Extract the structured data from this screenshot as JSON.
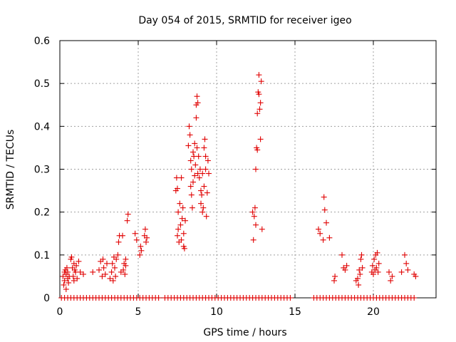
{
  "chart_data": {
    "type": "scatter",
    "title": "Day 054 of 2015, SRMTID for receiver igeo",
    "xlabel": "GPS time / hours",
    "ylabel": "SRMTID / TECUs",
    "xlim": [
      0,
      24
    ],
    "ylim": [
      0,
      0.6
    ],
    "xticks": [
      0,
      5,
      10,
      15,
      20
    ],
    "xtick_labels": [
      "0",
      "5",
      "10",
      "15",
      "20"
    ],
    "yticks": [
      0,
      0.1,
      0.2,
      0.3,
      0.4,
      0.5,
      0.6
    ],
    "ytick_labels": [
      "0",
      "0.1",
      "0.2",
      "0.3",
      "0.4",
      "0.5",
      "0.6"
    ],
    "grid": true,
    "marker": "+",
    "marker_color": "#e00000",
    "series": [
      {
        "name": "SRMTID",
        "points": [
          [
            0.2,
            0.05
          ],
          [
            0.25,
            0.03
          ],
          [
            0.3,
            0.06
          ],
          [
            0.3,
            0.04
          ],
          [
            0.35,
            0.065
          ],
          [
            0.4,
            0.02
          ],
          [
            0.4,
            0.055
          ],
          [
            0.45,
            0.07
          ],
          [
            0.5,
            0.045
          ],
          [
            0.5,
            0.06
          ],
          [
            0.55,
            0.035
          ],
          [
            0.6,
            0.05
          ],
          [
            0.7,
            0.09
          ],
          [
            0.75,
            0.095
          ],
          [
            0.8,
            0.07
          ],
          [
            0.85,
            0.05
          ],
          [
            0.9,
            0.04
          ],
          [
            0.9,
            0.08
          ],
          [
            0.95,
            0.065
          ],
          [
            1.0,
            0.06
          ],
          [
            1.05,
            0.075
          ],
          [
            1.1,
            0.045
          ],
          [
            1.2,
            0.085
          ],
          [
            1.3,
            0.06
          ],
          [
            1.5,
            0.055
          ],
          [
            2.1,
            0.06
          ],
          [
            2.5,
            0.065
          ],
          [
            2.6,
            0.085
          ],
          [
            2.7,
            0.05
          ],
          [
            2.75,
            0.09
          ],
          [
            2.8,
            0.07
          ],
          [
            2.9,
            0.055
          ],
          [
            3.0,
            0.08
          ],
          [
            3.2,
            0.045
          ],
          [
            3.3,
            0.06
          ],
          [
            3.35,
            0.08
          ],
          [
            3.4,
            0.04
          ],
          [
            3.45,
            0.095
          ],
          [
            3.5,
            0.07
          ],
          [
            3.55,
            0.05
          ],
          [
            3.6,
            0.09
          ],
          [
            3.7,
            0.1
          ],
          [
            3.75,
            0.13
          ],
          [
            3.8,
            0.145
          ],
          [
            3.9,
            0.06
          ],
          [
            4.0,
            0.145
          ],
          [
            4.05,
            0.065
          ],
          [
            4.1,
            0.08
          ],
          [
            4.15,
            0.055
          ],
          [
            4.2,
            0.075
          ],
          [
            4.2,
            0.09
          ],
          [
            4.3,
            0.18
          ],
          [
            4.35,
            0.195
          ],
          [
            4.8,
            0.15
          ],
          [
            4.9,
            0.135
          ],
          [
            5.1,
            0.1
          ],
          [
            5.15,
            0.12
          ],
          [
            5.2,
            0.11
          ],
          [
            5.4,
            0.145
          ],
          [
            5.45,
            0.16
          ],
          [
            5.5,
            0.13
          ],
          [
            5.55,
            0.14
          ],
          [
            7.4,
            0.25
          ],
          [
            7.45,
            0.28
          ],
          [
            7.5,
            0.255
          ],
          [
            7.5,
            0.145
          ],
          [
            7.55,
            0.2
          ],
          [
            7.55,
            0.16
          ],
          [
            7.6,
            0.13
          ],
          [
            7.65,
            0.22
          ],
          [
            7.7,
            0.17
          ],
          [
            7.75,
            0.135
          ],
          [
            7.75,
            0.28
          ],
          [
            7.8,
            0.185
          ],
          [
            7.85,
            0.21
          ],
          [
            7.9,
            0.12
          ],
          [
            7.9,
            0.15
          ],
          [
            7.95,
            0.115
          ],
          [
            8.0,
            0.18
          ],
          [
            8.2,
            0.355
          ],
          [
            8.25,
            0.4
          ],
          [
            8.3,
            0.38
          ],
          [
            8.35,
            0.32
          ],
          [
            8.35,
            0.26
          ],
          [
            8.4,
            0.3
          ],
          [
            8.4,
            0.24
          ],
          [
            8.45,
            0.21
          ],
          [
            8.5,
            0.34
          ],
          [
            8.5,
            0.27
          ],
          [
            8.55,
            0.33
          ],
          [
            8.6,
            0.36
          ],
          [
            8.6,
            0.285
          ],
          [
            8.65,
            0.31
          ],
          [
            8.7,
            0.45
          ],
          [
            8.7,
            0.42
          ],
          [
            8.75,
            0.47
          ],
          [
            8.75,
            0.35
          ],
          [
            8.8,
            0.455
          ],
          [
            8.8,
            0.29
          ],
          [
            8.85,
            0.33
          ],
          [
            8.9,
            0.28
          ],
          [
            8.95,
            0.3
          ],
          [
            9.0,
            0.25
          ],
          [
            9.0,
            0.22
          ],
          [
            9.05,
            0.24
          ],
          [
            9.1,
            0.2
          ],
          [
            9.1,
            0.29
          ],
          [
            9.15,
            0.21
          ],
          [
            9.2,
            0.26
          ],
          [
            9.2,
            0.35
          ],
          [
            9.25,
            0.37
          ],
          [
            9.3,
            0.33
          ],
          [
            9.3,
            0.3
          ],
          [
            9.35,
            0.19
          ],
          [
            9.4,
            0.245
          ],
          [
            9.45,
            0.32
          ],
          [
            9.5,
            0.29
          ],
          [
            12.3,
            0.2
          ],
          [
            12.35,
            0.135
          ],
          [
            12.4,
            0.19
          ],
          [
            12.45,
            0.21
          ],
          [
            12.5,
            0.17
          ],
          [
            12.5,
            0.3
          ],
          [
            12.55,
            0.35
          ],
          [
            12.6,
            0.345
          ],
          [
            12.6,
            0.43
          ],
          [
            12.65,
            0.48
          ],
          [
            12.7,
            0.52
          ],
          [
            12.7,
            0.475
          ],
          [
            12.75,
            0.44
          ],
          [
            12.8,
            0.455
          ],
          [
            12.8,
            0.37
          ],
          [
            12.85,
            0.505
          ],
          [
            12.9,
            0.16
          ],
          [
            16.5,
            0.16
          ],
          [
            16.6,
            0.15
          ],
          [
            16.8,
            0.135
          ],
          [
            16.85,
            0.235
          ],
          [
            16.9,
            0.205
          ],
          [
            17.0,
            0.175
          ],
          [
            17.2,
            0.14
          ],
          [
            17.5,
            0.04
          ],
          [
            17.55,
            0.05
          ],
          [
            18.0,
            0.1
          ],
          [
            18.1,
            0.07
          ],
          [
            18.2,
            0.065
          ],
          [
            18.3,
            0.075
          ],
          [
            18.9,
            0.04
          ],
          [
            19.0,
            0.045
          ],
          [
            19.05,
            0.03
          ],
          [
            19.1,
            0.065
          ],
          [
            19.15,
            0.055
          ],
          [
            19.2,
            0.09
          ],
          [
            19.25,
            0.1
          ],
          [
            19.3,
            0.07
          ],
          [
            19.9,
            0.06
          ],
          [
            19.95,
            0.075
          ],
          [
            20.0,
            0.055
          ],
          [
            20.05,
            0.09
          ],
          [
            20.1,
            0.065
          ],
          [
            20.15,
            0.1
          ],
          [
            20.2,
            0.07
          ],
          [
            20.25,
            0.105
          ],
          [
            20.3,
            0.06
          ],
          [
            20.35,
            0.08
          ],
          [
            21.0,
            0.06
          ],
          [
            21.1,
            0.04
          ],
          [
            21.2,
            0.05
          ],
          [
            21.8,
            0.06
          ],
          [
            22.0,
            0.1
          ],
          [
            22.1,
            0.08
          ],
          [
            22.2,
            0.065
          ],
          [
            22.6,
            0.055
          ],
          [
            22.7,
            0.05
          ]
        ],
        "zero_x": [
          0.1,
          0.3,
          0.5,
          0.7,
          0.9,
          1.1,
          1.3,
          1.5,
          1.7,
          1.9,
          2.1,
          2.3,
          2.5,
          2.7,
          2.9,
          3.1,
          3.3,
          3.5,
          3.7,
          3.9,
          4.1,
          4.3,
          4.5,
          4.7,
          4.9,
          5.1,
          5.3,
          5.5,
          5.7,
          5.9,
          6.1,
          6.3,
          6.7,
          6.9,
          7.1,
          7.3,
          7.5,
          7.7,
          7.9,
          8.1,
          8.3,
          8.5,
          8.7,
          8.9,
          9.1,
          9.3,
          9.5,
          9.7,
          9.9,
          10.1,
          10.3,
          10.5,
          10.7,
          10.9,
          11.1,
          11.3,
          11.5,
          11.7,
          11.9,
          12.1,
          12.3,
          12.5,
          12.7,
          12.9,
          13.1,
          13.3,
          13.5,
          13.7,
          13.9,
          14.1,
          14.3,
          14.5,
          14.7,
          16.2,
          16.4,
          16.6,
          16.8,
          17.0,
          17.2,
          17.4,
          17.6,
          17.8,
          18.0,
          18.2,
          18.4,
          18.6,
          18.8,
          19.0,
          19.2,
          19.4,
          19.6,
          19.8,
          20.0,
          20.2,
          20.4,
          20.6,
          20.8,
          21.0,
          21.2,
          21.4,
          21.6,
          21.8,
          22.0,
          22.2,
          22.4,
          22.6
        ]
      }
    ]
  }
}
